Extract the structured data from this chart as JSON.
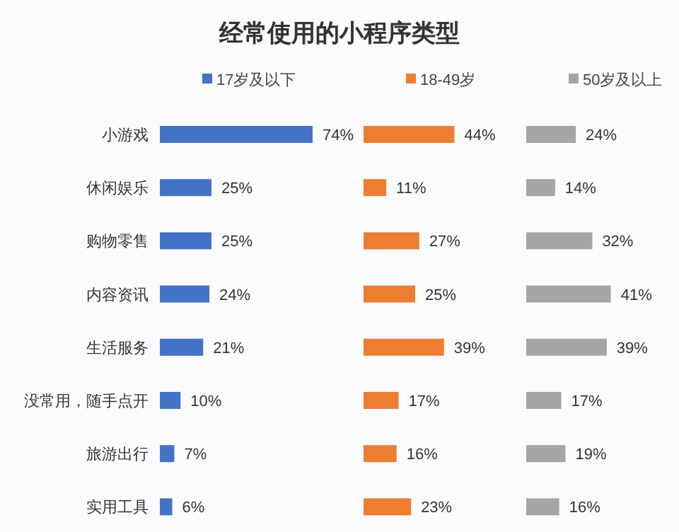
{
  "chart_data": [
    {
      "type": "bar",
      "orientation": "horizontal",
      "title": "经常使用的小程序类型",
      "categories": [
        "小游戏",
        "休闲娱乐",
        "购物零售",
        "内容资讯",
        "生活服务",
        "没常用，随手点开",
        "旅游出行",
        "实用工具"
      ],
      "tick_labels": "y",
      "legend": "top",
      "series": [
        {
          "name": "17岁及以下",
          "color": "#4472c4",
          "values": [
            74,
            25,
            25,
            24,
            21,
            10,
            7,
            6
          ],
          "value_labels": [
            "74%",
            "25%",
            "25%",
            "24%",
            "21%",
            "10%",
            "7%",
            "6%"
          ]
        }
      ]
    },
    {
      "type": "bar",
      "orientation": "horizontal",
      "categories": [
        null,
        null,
        null,
        null,
        null,
        null,
        null,
        null
      ],
      "tick_labels": false,
      "legend": "top",
      "series": [
        {
          "name": "18-49岁",
          "color": "#ed7d31",
          "values": [
            44,
            11,
            27,
            25,
            39,
            17,
            16,
            23
          ],
          "value_labels": [
            "44%",
            "11%",
            "27%",
            "25%",
            "39%",
            "17%",
            "16%",
            "23%"
          ]
        }
      ]
    },
    {
      "type": "bar",
      "orientation": "horizontal",
      "categories": [
        null,
        null,
        null,
        null,
        null,
        null,
        null,
        null
      ],
      "tick_labels": false,
      "legend": "top",
      "series": [
        {
          "name": "50岁及以上",
          "color": "#a5a5a5",
          "values": [
            24,
            14,
            32,
            41,
            39,
            17,
            19,
            16
          ],
          "value_labels": [
            "24%",
            "14%",
            "32%",
            "41%",
            "39%",
            "17%",
            "19%",
            "16%"
          ]
        }
      ]
    }
  ]
}
